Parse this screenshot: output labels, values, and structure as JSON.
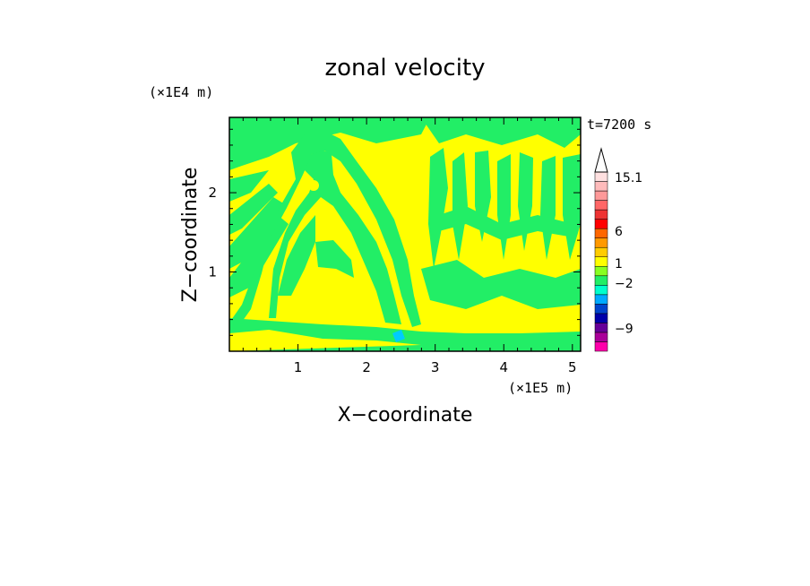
{
  "chart_data": {
    "type": "heatmap",
    "title": "zonal velocity",
    "xlabel": "X−coordinate",
    "ylabel": "Z−coordinate",
    "x_unit": "(×1E5 m)",
    "y_unit": "(×1E4 m)",
    "time_label": "t=7200 s",
    "xlim": [
      0,
      5.12
    ],
    "ylim": [
      0,
      2.95
    ],
    "x_ticks": [
      "1",
      "2",
      "3",
      "4",
      "5"
    ],
    "x_tick_values": [
      1,
      2,
      3,
      4,
      5
    ],
    "y_ticks": [
      "1",
      "2"
    ],
    "y_tick_values": [
      1,
      2
    ],
    "colorbar": {
      "labels": [
        "15.1",
        "6",
        "1",
        "−2",
        "−9"
      ],
      "label_values": [
        15.1,
        6,
        1,
        -2,
        -9
      ],
      "colors": [
        "#ff00aa",
        "#aa0099",
        "#660099",
        "#0000aa",
        "#0044cc",
        "#00aaff",
        "#00ffcc",
        "#22ee66",
        "#88ff22",
        "#ffff00",
        "#ffcc00",
        "#ff9900",
        "#ff6600",
        "#ff0000",
        "#ee3333",
        "#ff6666",
        "#ff9999",
        "#ffbbbb",
        "#ffe0e0"
      ],
      "extend_max": true
    },
    "dominant_colors": {
      "positive_small": "#ffff00",
      "negative_small": "#22ee66",
      "negative_mid": "#00ccff"
    }
  }
}
